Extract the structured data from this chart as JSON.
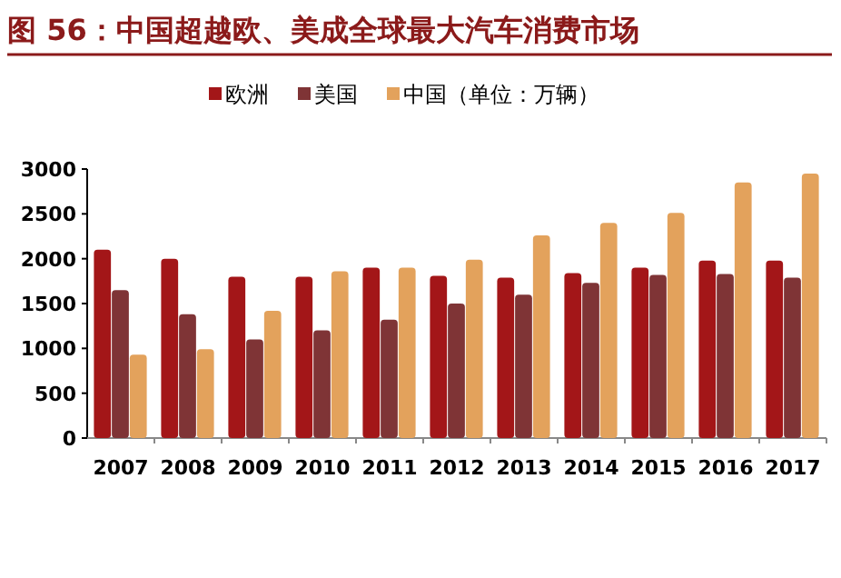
{
  "chart_data": {
    "type": "bar",
    "title": "图 56：中国超越欧、美成全球最大汽车消费市场",
    "categories": [
      "2007",
      "2008",
      "2009",
      "2010",
      "2011",
      "2012",
      "2013",
      "2014",
      "2015",
      "2016",
      "2017"
    ],
    "series": [
      {
        "name": "欧洲",
        "color": "#a31618",
        "values": [
          2100,
          2000,
          1800,
          1800,
          1900,
          1810,
          1790,
          1840,
          1900,
          1980,
          1980
        ]
      },
      {
        "name": "美国",
        "color": "#7f3436",
        "values": [
          1650,
          1380,
          1100,
          1200,
          1320,
          1500,
          1600,
          1730,
          1820,
          1830,
          1790
        ]
      },
      {
        "name": "中国（单位：万辆）",
        "color": "#e3a25c",
        "values": [
          930,
          990,
          1420,
          1860,
          1900,
          1990,
          2260,
          2400,
          2510,
          2850,
          2950
        ]
      }
    ],
    "ylim": [
      0,
      3000
    ],
    "yticks": [
      0,
      500,
      1000,
      1500,
      2000,
      2500,
      3000
    ],
    "legend": "top"
  }
}
